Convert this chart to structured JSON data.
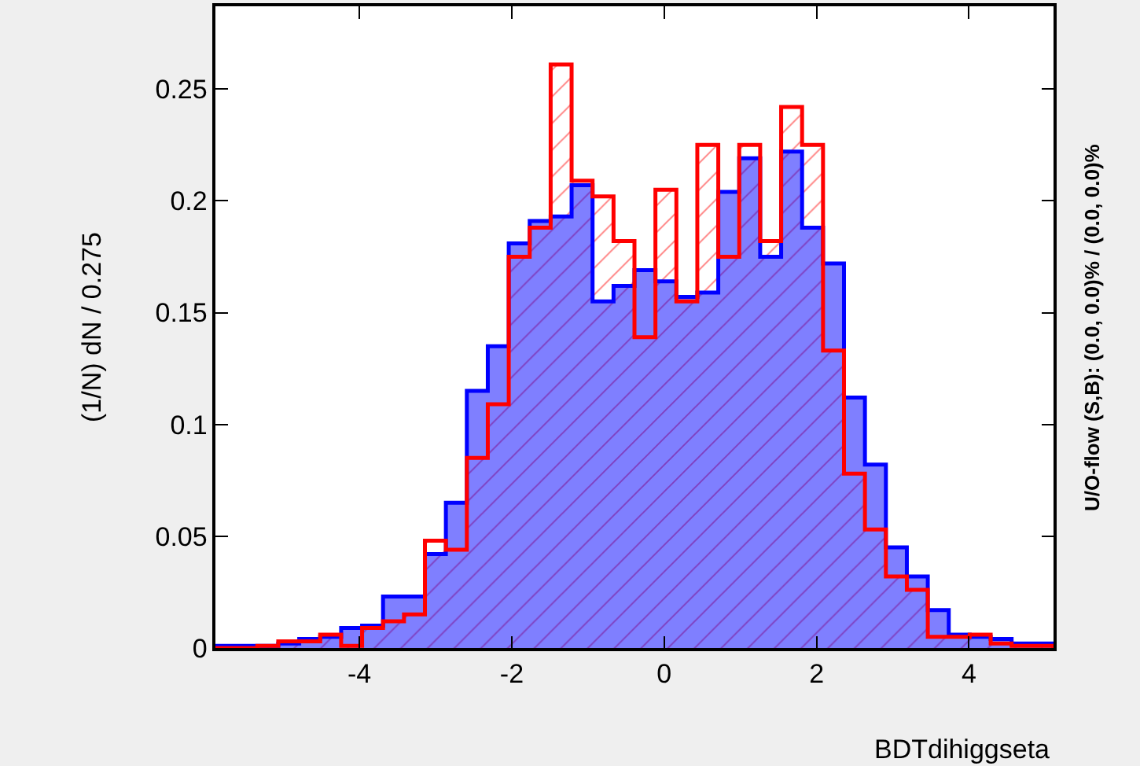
{
  "chart_data": {
    "type": "histogram",
    "xlabel": "BDTdihiggseta",
    "ylabel": "(1/N) dN / 0.275",
    "annotations": [
      "U/O-flow (S,B): (0.0, 0.0)% / (0.0, 0.0)%"
    ],
    "bins": [
      -5.89,
      -5.615,
      -5.34,
      -5.065,
      -4.79,
      -4.515,
      -4.24,
      -3.965,
      -3.69,
      -3.415,
      -3.14,
      -2.865,
      -2.59,
      -2.315,
      -2.04,
      -1.765,
      -1.49,
      -1.215,
      -0.94,
      -0.665,
      -0.39,
      -0.115,
      0.16,
      0.435,
      0.71,
      0.985,
      1.26,
      1.535,
      1.81,
      2.085,
      2.36,
      2.635,
      2.91,
      3.185,
      3.46,
      3.735,
      4.01,
      4.285,
      4.56,
      4.835,
      5.11
    ],
    "series": [
      {
        "color": "#0000ff",
        "values": [
          0.001,
          0.001,
          0.001,
          0.002,
          0.004,
          0.005,
          0.009,
          0.01,
          0.023,
          0.023,
          0.042,
          0.065,
          0.115,
          0.135,
          0.181,
          0.191,
          0.193,
          0.207,
          0.155,
          0.162,
          0.169,
          0.164,
          0.157,
          0.159,
          0.204,
          0.219,
          0.175,
          0.222,
          0.188,
          0.172,
          0.112,
          0.082,
          0.045,
          0.032,
          0.017,
          0.006,
          0.005,
          0.004,
          0.002,
          0.002
        ]
      },
      {
        "color": "#ff0000",
        "values": [
          0.0,
          0.0,
          0.001,
          0.003,
          0.003,
          0.006,
          0.001,
          0.009,
          0.012,
          0.015,
          0.048,
          0.044,
          0.085,
          0.109,
          0.175,
          0.188,
          0.261,
          0.209,
          0.202,
          0.182,
          0.139,
          0.205,
          0.155,
          0.225,
          0.175,
          0.225,
          0.182,
          0.242,
          0.225,
          0.133,
          0.078,
          0.053,
          0.032,
          0.026,
          0.005,
          0.005,
          0.006,
          0.002,
          0.001,
          0.001
        ]
      }
    ],
    "xlim": [
      -5.89,
      5.11
    ],
    "xticks": [
      -4,
      -2,
      0,
      2,
      4
    ],
    "ylim": [
      0,
      0.287
    ],
    "yticks": [
      0,
      0.05,
      0.1,
      0.15,
      0.2,
      0.25
    ]
  }
}
